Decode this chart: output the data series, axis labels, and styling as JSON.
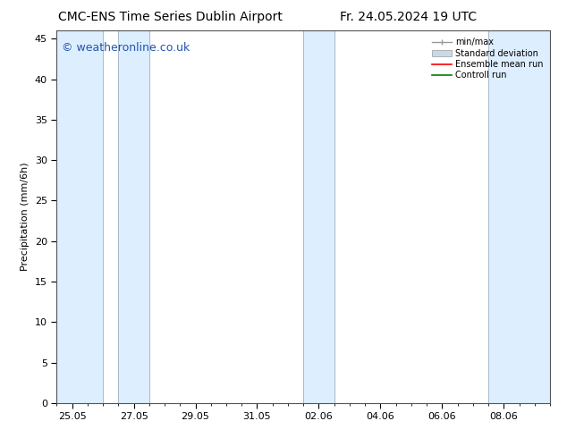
{
  "title_left": "CMC-ENS Time Series Dublin Airport",
  "title_right": "Fr. 24.05.2024 19 UTC",
  "ylabel": "Precipitation (mm/6h)",
  "xlabel_ticks": [
    "25.05",
    "27.05",
    "29.05",
    "31.05",
    "02.06",
    "04.06",
    "06.06",
    "08.06"
  ],
  "tick_positions": [
    0,
    2,
    4,
    6,
    8,
    10,
    12,
    14
  ],
  "ylim": [
    0,
    46
  ],
  "yticks": [
    0,
    5,
    10,
    15,
    20,
    25,
    30,
    35,
    40,
    45
  ],
  "xlim": [
    -0.5,
    15.5
  ],
  "bg_color": "#ffffff",
  "plot_bg_color": "#ffffff",
  "shaded_color": "#ddeeff",
  "border_color": "#aabbcc",
  "bands": [
    [
      -0.5,
      1.0
    ],
    [
      1.5,
      2.5
    ],
    [
      7.5,
      8.5
    ],
    [
      13.5,
      15.5
    ]
  ],
  "legend_items": [
    {
      "label": "min/max",
      "color": "#999999",
      "type": "errorbar"
    },
    {
      "label": "Standard deviation",
      "color": "#c8daea",
      "type": "bar"
    },
    {
      "label": "Ensemble mean run",
      "color": "#ff0000",
      "type": "line"
    },
    {
      "label": "Controll run",
      "color": "#008000",
      "type": "line"
    }
  ],
  "watermark": "© weatheronline.co.uk",
  "watermark_color": "#2255aa",
  "title_fontsize": 10,
  "axis_label_fontsize": 8,
  "tick_fontsize": 8,
  "watermark_fontsize": 9,
  "legend_fontsize": 7
}
